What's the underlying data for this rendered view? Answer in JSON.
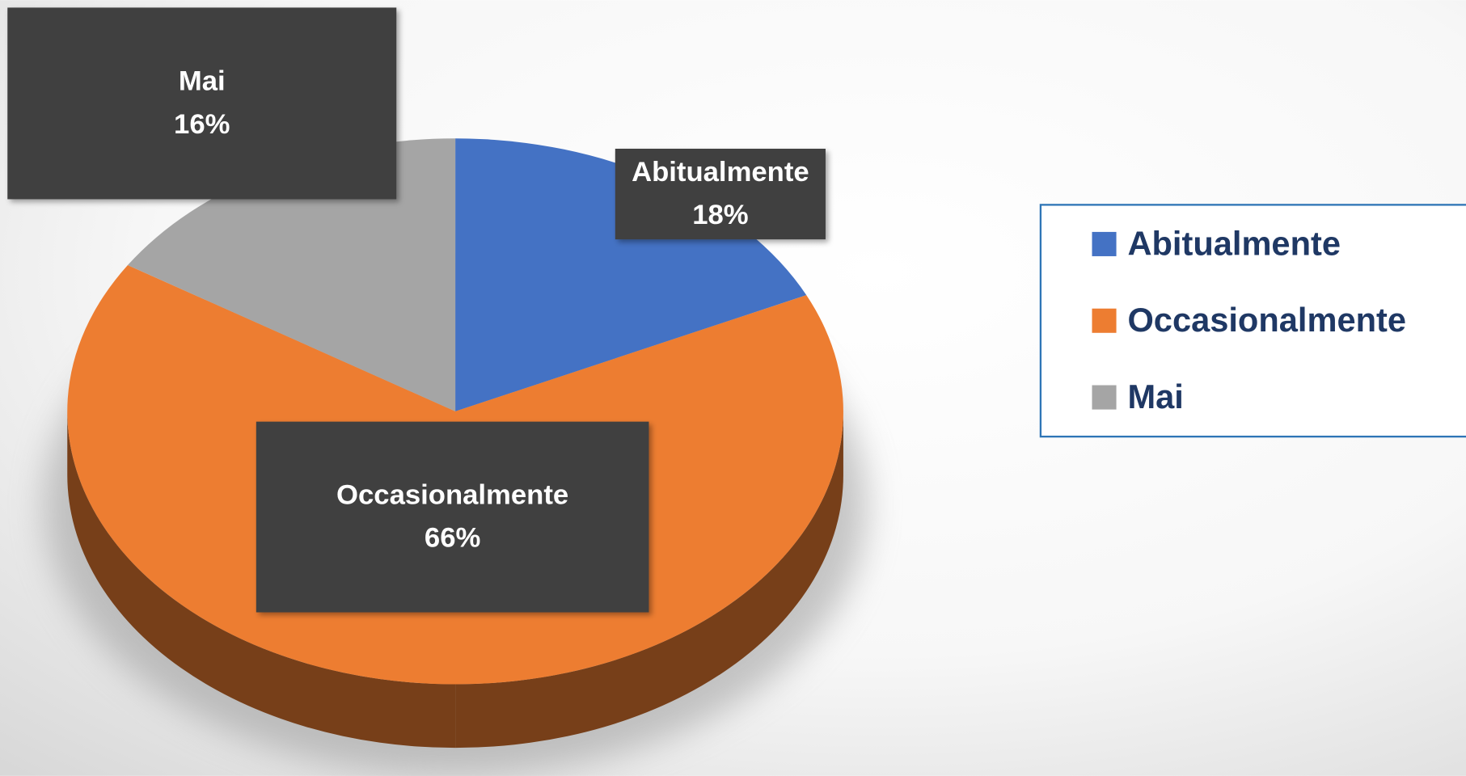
{
  "chart_data": {
    "type": "pie",
    "categories": [
      "Abitualmente",
      "Occasionalmente",
      "Mai"
    ],
    "values": [
      18,
      66,
      16
    ],
    "value_labels": [
      "18%",
      "66%",
      "16%"
    ],
    "colors": [
      "#4472c4",
      "#ed7d31",
      "#a5a5a5"
    ],
    "legend": "right"
  }
}
